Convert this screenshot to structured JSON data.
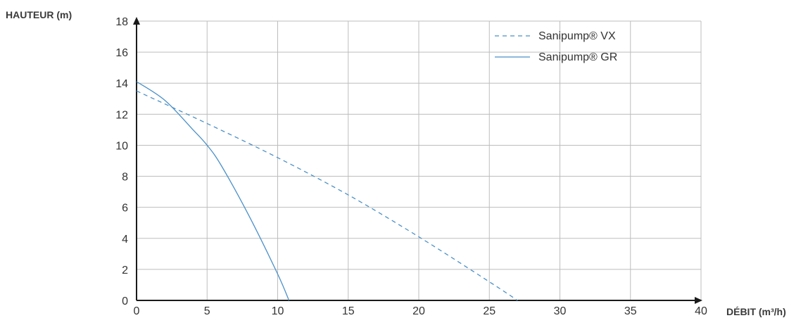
{
  "chart_data": {
    "type": "line",
    "xlabel": "DÉBIT (m³/h)",
    "ylabel": "HAUTEUR (m)",
    "xlim": [
      0,
      40
    ],
    "ylim": [
      0,
      18
    ],
    "xticks": [
      0,
      5,
      10,
      15,
      20,
      25,
      30,
      35,
      40
    ],
    "yticks": [
      0,
      2,
      4,
      6,
      8,
      10,
      12,
      14,
      16,
      18
    ],
    "grid": true,
    "legend_position": "top-right",
    "series": [
      {
        "name": "Sanipump® VX",
        "style": "dashed",
        "color": "#4a90c8",
        "x": [
          0,
          5,
          10,
          15,
          20,
          25,
          27
        ],
        "y": [
          13.5,
          11.4,
          9.2,
          6.8,
          4.1,
          1.2,
          0
        ]
      },
      {
        "name": "Sanipump® GR",
        "style": "solid",
        "color": "#4a90c8",
        "x": [
          0,
          2,
          4,
          5,
          6,
          8,
          10,
          10.8
        ],
        "y": [
          14.1,
          12.9,
          11.0,
          10.0,
          8.7,
          5.4,
          1.7,
          0
        ]
      }
    ]
  }
}
